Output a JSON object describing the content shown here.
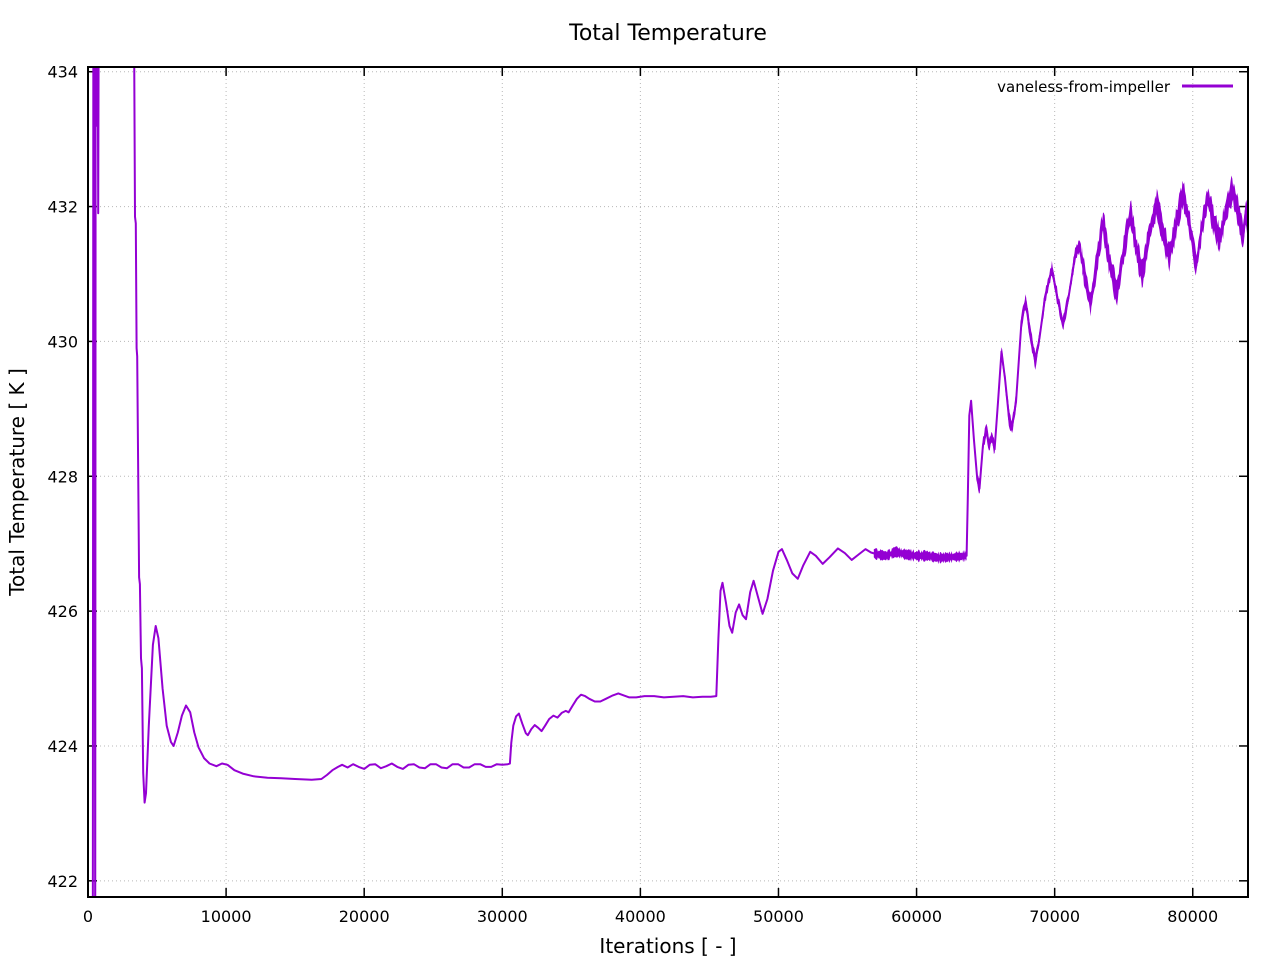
{
  "chart_data": {
    "type": "line",
    "title": "Total Temperature",
    "xlabel": "Iterations [ - ]",
    "ylabel": "Total Temperature [ K ]",
    "grid": true,
    "legend": {
      "position": "top-right-inside",
      "entries": [
        {
          "label": "vaneless-from-impeller",
          "color": "#9400d3"
        }
      ]
    },
    "xlim": [
      0,
      84000
    ],
    "ylim": [
      421.76,
      434.07
    ],
    "xticks": [
      0,
      10000,
      20000,
      30000,
      40000,
      50000,
      60000,
      70000,
      80000
    ],
    "yticks": [
      422,
      424,
      426,
      428,
      430,
      432,
      434
    ],
    "axis_color": "#000000",
    "grid_color": "#b8b8b8",
    "background": "#ffffff",
    "series": [
      {
        "name": "vaneless-from-impeller",
        "color": "#9400d3",
        "points": [
          [
            350,
            420.5
          ],
          [
            390,
            436
          ],
          [
            430,
            433.3
          ],
          [
            470,
            436
          ],
          [
            520,
            420.5
          ],
          [
            560,
            436
          ],
          [
            600,
            433.45
          ],
          [
            640,
            433.2
          ],
          [
            690,
            436
          ],
          [
            740,
            431.9
          ],
          [
            790,
            436
          ],
          [
            3300,
            436
          ],
          [
            3400,
            431.85
          ],
          [
            3460,
            431.75
          ],
          [
            3520,
            429.9
          ],
          [
            3560,
            429.78
          ],
          [
            3700,
            426.5
          ],
          [
            3760,
            426.4
          ],
          [
            3840,
            425.3
          ],
          [
            3900,
            425.15
          ],
          [
            4000,
            423.6
          ],
          [
            4100,
            423.16
          ],
          [
            4200,
            423.3
          ],
          [
            4400,
            424.3
          ],
          [
            4700,
            425.5
          ],
          [
            4900,
            425.78
          ],
          [
            5100,
            425.6
          ],
          [
            5400,
            424.85
          ],
          [
            5700,
            424.3
          ],
          [
            6000,
            424.06
          ],
          [
            6200,
            424.0
          ],
          [
            6500,
            424.2
          ],
          [
            6800,
            424.45
          ],
          [
            7100,
            424.6
          ],
          [
            7400,
            424.5
          ],
          [
            7700,
            424.2
          ],
          [
            8000,
            423.98
          ],
          [
            8400,
            423.82
          ],
          [
            8800,
            423.74
          ],
          [
            9300,
            423.7
          ],
          [
            9700,
            423.74
          ],
          [
            10100,
            423.72
          ],
          [
            10600,
            423.64
          ],
          [
            11200,
            423.59
          ],
          [
            12000,
            423.55
          ],
          [
            13000,
            423.53
          ],
          [
            14000,
            423.52
          ],
          [
            15000,
            423.51
          ],
          [
            16200,
            423.5
          ],
          [
            16900,
            423.51
          ],
          [
            17300,
            423.57
          ],
          [
            17700,
            423.64
          ],
          [
            18100,
            423.69
          ],
          [
            18400,
            423.72
          ],
          [
            18800,
            423.68
          ],
          [
            19200,
            423.73
          ],
          [
            19600,
            423.69
          ],
          [
            20000,
            423.66
          ],
          [
            20400,
            423.72
          ],
          [
            20800,
            423.73
          ],
          [
            21200,
            423.67
          ],
          [
            21600,
            423.7
          ],
          [
            22000,
            423.74
          ],
          [
            22400,
            423.69
          ],
          [
            22800,
            423.66
          ],
          [
            23200,
            423.72
          ],
          [
            23600,
            423.73
          ],
          [
            24000,
            423.68
          ],
          [
            24400,
            423.67
          ],
          [
            24800,
            423.73
          ],
          [
            25200,
            423.73
          ],
          [
            25600,
            423.68
          ],
          [
            26000,
            423.67
          ],
          [
            26400,
            423.73
          ],
          [
            26800,
            423.73
          ],
          [
            27200,
            423.68
          ],
          [
            27600,
            423.68
          ],
          [
            28000,
            423.73
          ],
          [
            28400,
            423.73
          ],
          [
            28800,
            423.69
          ],
          [
            29200,
            423.69
          ],
          [
            29600,
            423.73
          ],
          [
            30000,
            423.72
          ],
          [
            30400,
            423.73
          ],
          [
            30550,
            423.74
          ],
          [
            30650,
            424.05
          ],
          [
            30800,
            424.3
          ],
          [
            31000,
            424.44
          ],
          [
            31200,
            424.48
          ],
          [
            31450,
            424.33
          ],
          [
            31700,
            424.19
          ],
          [
            31850,
            424.16
          ],
          [
            32100,
            424.25
          ],
          [
            32350,
            424.31
          ],
          [
            32600,
            424.27
          ],
          [
            32850,
            424.22
          ],
          [
            33100,
            424.3
          ],
          [
            33400,
            424.4
          ],
          [
            33700,
            424.45
          ],
          [
            34000,
            424.42
          ],
          [
            34300,
            424.49
          ],
          [
            34600,
            424.52
          ],
          [
            34800,
            424.5
          ],
          [
            35100,
            424.6
          ],
          [
            35400,
            424.7
          ],
          [
            35700,
            424.76
          ],
          [
            36000,
            424.74
          ],
          [
            36300,
            424.7
          ],
          [
            36700,
            424.66
          ],
          [
            37100,
            424.66
          ],
          [
            37500,
            424.7
          ],
          [
            38000,
            424.75
          ],
          [
            38400,
            424.78
          ],
          [
            38800,
            424.75
          ],
          [
            39200,
            424.72
          ],
          [
            39700,
            424.72
          ],
          [
            40300,
            424.74
          ],
          [
            41000,
            424.74
          ],
          [
            41700,
            424.72
          ],
          [
            42400,
            424.73
          ],
          [
            43100,
            424.74
          ],
          [
            43800,
            424.72
          ],
          [
            44500,
            424.73
          ],
          [
            45100,
            424.73
          ],
          [
            45500,
            424.74
          ],
          [
            45650,
            425.6
          ],
          [
            45800,
            426.3
          ],
          [
            45950,
            426.42
          ],
          [
            46200,
            426.12
          ],
          [
            46450,
            425.78
          ],
          [
            46650,
            425.68
          ],
          [
            46900,
            425.98
          ],
          [
            47150,
            426.1
          ],
          [
            47400,
            425.94
          ],
          [
            47650,
            425.88
          ],
          [
            47950,
            426.28
          ],
          [
            48200,
            426.45
          ],
          [
            48500,
            426.22
          ],
          [
            48850,
            425.96
          ],
          [
            49200,
            426.18
          ],
          [
            49600,
            426.6
          ],
          [
            50000,
            426.88
          ],
          [
            50250,
            426.92
          ],
          [
            50600,
            426.76
          ],
          [
            51000,
            426.56
          ],
          [
            51400,
            426.48
          ],
          [
            51800,
            426.68
          ],
          [
            52300,
            426.88
          ],
          [
            52700,
            426.82
          ],
          [
            53200,
            426.7
          ],
          [
            53700,
            426.8
          ],
          [
            54300,
            426.93
          ],
          [
            54800,
            426.86
          ],
          [
            55300,
            426.76
          ],
          [
            55800,
            426.84
          ],
          [
            56300,
            426.92
          ],
          [
            56700,
            426.87
          ],
          [
            57200,
            426.84
          ],
          [
            57800,
            426.82
          ],
          [
            58500,
            426.88
          ],
          [
            59200,
            426.84
          ],
          [
            60000,
            426.82
          ],
          [
            60800,
            426.82
          ],
          [
            61600,
            426.79
          ],
          [
            62400,
            426.8
          ],
          [
            63200,
            426.81
          ],
          [
            63620,
            426.82
          ],
          [
            63700,
            427.6
          ],
          [
            63820,
            428.9
          ],
          [
            63950,
            429.12
          ],
          [
            64150,
            428.55
          ],
          [
            64400,
            427.95
          ],
          [
            64560,
            427.82
          ],
          [
            64800,
            428.45
          ],
          [
            65050,
            428.7
          ],
          [
            65250,
            428.45
          ],
          [
            65450,
            428.6
          ],
          [
            65650,
            428.4
          ],
          [
            65900,
            429.1
          ],
          [
            66150,
            429.85
          ],
          [
            66400,
            429.45
          ],
          [
            66700,
            428.85
          ],
          [
            66900,
            428.72
          ],
          [
            67200,
            429.1
          ],
          [
            67600,
            430.3
          ],
          [
            67900,
            430.6
          ],
          [
            68200,
            430.15
          ],
          [
            68600,
            429.7
          ],
          [
            68900,
            430.05
          ],
          [
            69300,
            430.65
          ],
          [
            69800,
            431.08
          ],
          [
            70100,
            430.75
          ],
          [
            70600,
            430.25
          ],
          [
            71000,
            430.65
          ],
          [
            71500,
            431.3
          ],
          [
            71800,
            431.42
          ],
          [
            72200,
            430.95
          ],
          [
            72600,
            430.55
          ],
          [
            73000,
            431.1
          ],
          [
            73500,
            431.78
          ],
          [
            73900,
            431.25
          ],
          [
            74500,
            430.7
          ],
          [
            75000,
            431.35
          ],
          [
            75500,
            431.92
          ],
          [
            75900,
            431.4
          ],
          [
            76350,
            430.98
          ],
          [
            76800,
            431.55
          ],
          [
            77400,
            432.05
          ],
          [
            77800,
            431.65
          ],
          [
            78300,
            431.25
          ],
          [
            78800,
            431.75
          ],
          [
            79300,
            432.2
          ],
          [
            79800,
            431.7
          ],
          [
            80250,
            431.12
          ],
          [
            80700,
            431.75
          ],
          [
            81100,
            432.15
          ],
          [
            81500,
            431.78
          ],
          [
            81950,
            431.5
          ],
          [
            82350,
            431.9
          ],
          [
            82850,
            432.25
          ],
          [
            83250,
            431.95
          ],
          [
            83650,
            431.55
          ],
          [
            83850,
            431.95
          ],
          [
            84000,
            431.7
          ]
        ],
        "noise_bands": [
          {
            "from": 56900,
            "to": 63650,
            "amplitude": 0.065
          },
          {
            "from": 64400,
            "to": 72000,
            "amplitude": 0.1
          },
          {
            "from": 72000,
            "to": 84000,
            "amplitude": 0.17
          }
        ]
      }
    ]
  }
}
